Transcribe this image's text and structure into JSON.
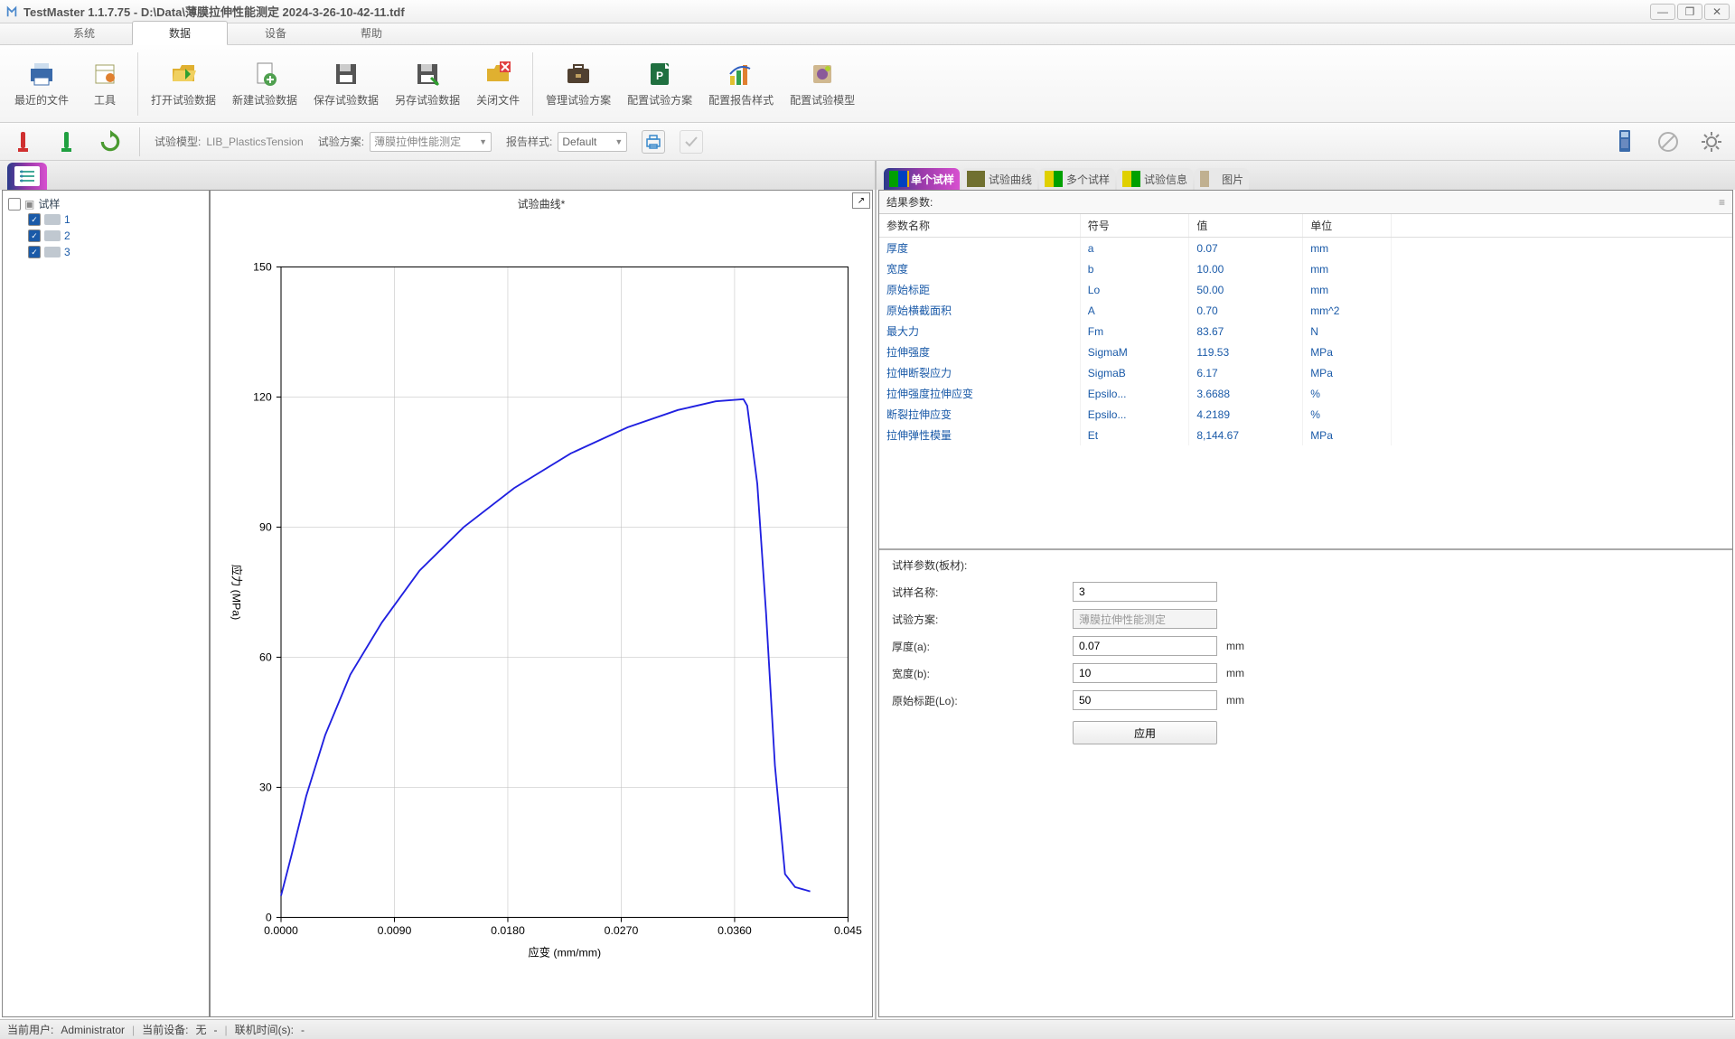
{
  "window": {
    "title": "TestMaster 1.1.7.75 - D:\\Data\\薄膜拉伸性能测定 2024-3-26-10-42-11.tdf"
  },
  "menu": {
    "tabs": [
      "系统",
      "数据",
      "设备",
      "帮助"
    ],
    "activeIndex": 1
  },
  "ribbon": {
    "items": [
      {
        "name": "recent-files",
        "label": "最近的文件",
        "icon": "printer"
      },
      {
        "name": "tools",
        "label": "工具",
        "icon": "tools"
      },
      {
        "name": "open-test",
        "label": "打开试验数据",
        "icon": "folder-open"
      },
      {
        "name": "new-test",
        "label": "新建试验数据",
        "icon": "file-new"
      },
      {
        "name": "save-test",
        "label": "保存试验数据",
        "icon": "floppy"
      },
      {
        "name": "saveas-test",
        "label": "另存试验数据",
        "icon": "floppy-as"
      },
      {
        "name": "close-file",
        "label": "关闭文件",
        "icon": "folder-close"
      },
      {
        "name": "manage-scheme",
        "label": "管理试验方案",
        "icon": "briefcase"
      },
      {
        "name": "config-scheme",
        "label": "配置试验方案",
        "icon": "config-p"
      },
      {
        "name": "config-report",
        "label": "配置报告样式",
        "icon": "chart"
      },
      {
        "name": "config-model",
        "label": "配置试验模型",
        "icon": "model"
      }
    ]
  },
  "cfg": {
    "modelLabel": "试验模型:",
    "modelValue": "LIB_PlasticsTension",
    "schemeLabel": "试验方案:",
    "schemeValue": "薄膜拉伸性能测定",
    "reportLabel": "报告样式:",
    "reportValue": "Default"
  },
  "tree": {
    "root": "试样",
    "items": [
      {
        "id": "1",
        "checked": true
      },
      {
        "id": "2",
        "checked": true
      },
      {
        "id": "3",
        "checked": true
      }
    ]
  },
  "chart": {
    "title": "试验曲线*",
    "xlabel": "应变 (mm/mm)",
    "ylabel": "应力 (MPa)",
    "xlim": [
      0,
      0.045
    ],
    "ylim": [
      0,
      150
    ],
    "xticks": [
      "0.0000",
      "0.0090",
      "0.0180",
      "0.0270",
      "0.0360",
      "0.045"
    ],
    "yticks": [
      0,
      30,
      60,
      90,
      120,
      150
    ],
    "line_color": "#2020e0",
    "grid_color": "#bbbbbb",
    "background": "#ffffff",
    "curve": [
      [
        0.0,
        5
      ],
      [
        0.0008,
        14
      ],
      [
        0.002,
        28
      ],
      [
        0.0035,
        42
      ],
      [
        0.0055,
        56
      ],
      [
        0.008,
        68
      ],
      [
        0.011,
        80
      ],
      [
        0.0145,
        90
      ],
      [
        0.0185,
        99
      ],
      [
        0.023,
        107
      ],
      [
        0.0275,
        113
      ],
      [
        0.0315,
        117
      ],
      [
        0.0345,
        119
      ],
      [
        0.0367,
        119.5
      ],
      [
        0.037,
        118
      ],
      [
        0.0378,
        100
      ],
      [
        0.0385,
        70
      ],
      [
        0.0392,
        35
      ],
      [
        0.04,
        10
      ],
      [
        0.0408,
        7
      ],
      [
        0.042,
        6
      ]
    ]
  },
  "resultTabs": [
    {
      "name": "single-sample",
      "label": "单个试样",
      "active": true,
      "iconColors": [
        "#00a000",
        "#0040c0",
        "#e0b000"
      ]
    },
    {
      "name": "test-curve",
      "label": "试验曲线",
      "active": false,
      "iconColors": [
        "#707030",
        "#707030"
      ]
    },
    {
      "name": "multi-sample",
      "label": "多个试样",
      "active": false,
      "iconColors": [
        "#e0d000",
        "#00a000"
      ]
    },
    {
      "name": "test-info",
      "label": "试验信息",
      "active": false,
      "iconColors": [
        "#e0d000",
        "#00a000"
      ]
    },
    {
      "name": "image",
      "label": "图片",
      "active": false,
      "iconColors": [
        "#c0b090"
      ]
    }
  ],
  "results": {
    "header": "结果参数:",
    "columns": [
      "参数名称",
      "符号",
      "值",
      "单位"
    ],
    "rows": [
      [
        "厚度",
        "a",
        "0.07",
        "mm"
      ],
      [
        "宽度",
        "b",
        "10.00",
        "mm"
      ],
      [
        "原始标距",
        "Lo",
        "50.00",
        "mm"
      ],
      [
        "原始横截面积",
        "A",
        "0.70",
        "mm^2"
      ],
      [
        "最大力",
        "Fm",
        "83.67",
        "N"
      ],
      [
        "拉伸强度",
        "SigmaM",
        "119.53",
        "MPa"
      ],
      [
        "拉伸断裂应力",
        "SigmaB",
        "6.17",
        "MPa"
      ],
      [
        "拉伸强度拉伸应变",
        "Epsilo...",
        "3.6688",
        "%"
      ],
      [
        "断裂拉伸应变",
        "Epsilo...",
        "4.2189",
        "%"
      ],
      [
        "拉伸弹性模量",
        "Et",
        "8,144.67",
        "MPa"
      ]
    ]
  },
  "sampleParams": {
    "header": "试样参数(板材):",
    "rows": [
      {
        "label": "试样名称:",
        "value": "3",
        "unit": "",
        "disabled": false
      },
      {
        "label": "试验方案:",
        "value": "薄膜拉伸性能测定",
        "unit": "",
        "disabled": true
      },
      {
        "label": "厚度(a):",
        "value": "0.07",
        "unit": "mm",
        "disabled": false
      },
      {
        "label": "宽度(b):",
        "value": "10",
        "unit": "mm",
        "disabled": false
      },
      {
        "label": "原始标距(Lo):",
        "value": "50",
        "unit": "mm",
        "disabled": false
      }
    ],
    "applyLabel": "应用"
  },
  "status": {
    "user_label": "当前用户:",
    "user": "Administrator",
    "device_label": "当前设备:",
    "device": "无",
    "dash": "-",
    "time_label": "联机时间(s):",
    "time": "-"
  }
}
